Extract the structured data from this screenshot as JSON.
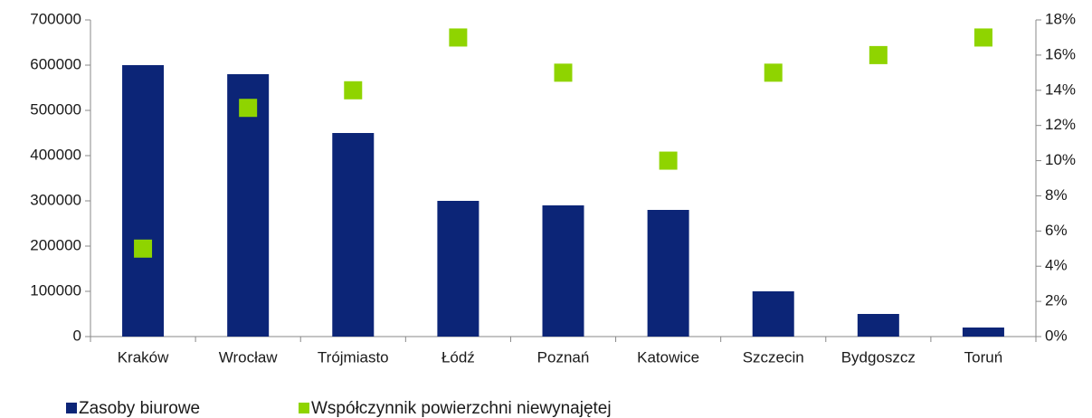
{
  "chart_data": {
    "type": "bar",
    "categories": [
      "Kraków",
      "Wrocław",
      "Trójmiasto",
      "Łódź",
      "Poznań",
      "Katowice",
      "Szczecin",
      "Bydgoszcz",
      "Toruń"
    ],
    "series": [
      {
        "name": "Zasoby biurowe",
        "type": "bar",
        "color": "#0c2577",
        "values": [
          600000,
          580000,
          450000,
          300000,
          290000,
          280000,
          100000,
          50000,
          20000
        ]
      },
      {
        "name": "Współczynnik powierzchni niewynajętej",
        "type": "scatter",
        "axis": "y2",
        "color": "#8fd400",
        "values": [
          5,
          13,
          14,
          17,
          15,
          10,
          15,
          16,
          17
        ]
      }
    ],
    "ylim": [
      0,
      700000
    ],
    "yticks": [
      0,
      100000,
      200000,
      300000,
      400000,
      500000,
      600000,
      700000
    ],
    "y2lim": [
      0,
      18
    ],
    "y2ticks": [
      {
        "value": 0,
        "label": "0%"
      },
      {
        "value": 2,
        "label": "2%"
      },
      {
        "value": 4,
        "label": "4%"
      },
      {
        "value": 6,
        "label": "6%"
      },
      {
        "value": 8,
        "label": "8%"
      },
      {
        "value": 10,
        "label": "10%"
      },
      {
        "value": 12,
        "label": "12%"
      },
      {
        "value": 14,
        "label": "14%"
      },
      {
        "value": 16,
        "label": "16%"
      },
      {
        "value": 18,
        "label": "18%"
      }
    ],
    "legend": "bottom-left"
  }
}
